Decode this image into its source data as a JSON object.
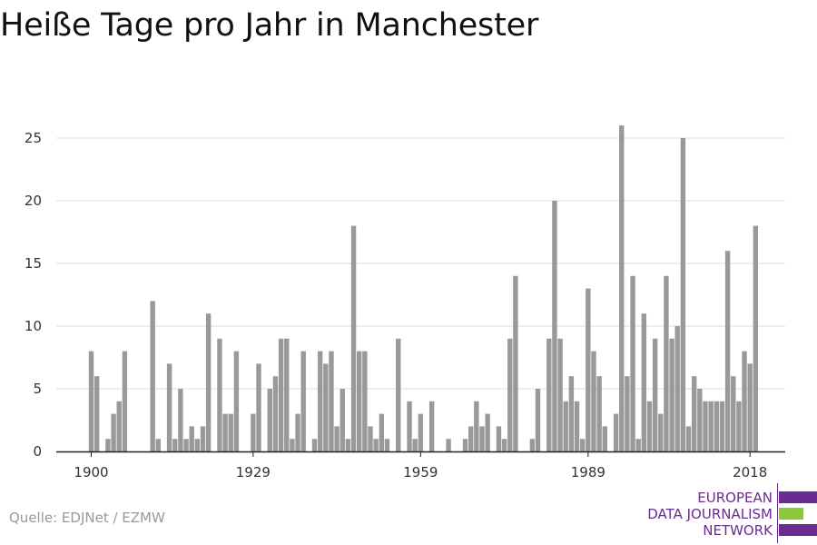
{
  "title": "Heiße Tage pro Jahr in Manchester",
  "source": "Quelle: EDJNet / EZMW",
  "logo": {
    "lines": [
      "EUROPEAN",
      "DATA JOURNALISM",
      "NETWORK"
    ],
    "colors": {
      "purple": "#6b2c91",
      "green": "#8cc63f"
    }
  },
  "colors": {
    "bar": "#999999",
    "grid": "#dddddd",
    "axis": "#222222",
    "text": "#333333"
  },
  "chart_data": {
    "type": "bar",
    "title": "Heiße Tage pro Jahr in Manchester",
    "xlabel": "",
    "ylabel": "",
    "x_start": 1900,
    "x_end": 2018,
    "x_tick_labels": [
      "1900",
      "1929",
      "1959",
      "1989",
      "2018"
    ],
    "y_ticks": [
      0,
      5,
      10,
      15,
      20,
      25
    ],
    "ylim": [
      0,
      26
    ],
    "grid": true,
    "series": [
      {
        "values": [
          8,
          6,
          0,
          1,
          3,
          4,
          8,
          0,
          0,
          0,
          0,
          12,
          1,
          0,
          7,
          1,
          5,
          1,
          2,
          1,
          2,
          11,
          0,
          9,
          3,
          3,
          8,
          0,
          0,
          3,
          7,
          0,
          5,
          6,
          9,
          9,
          1,
          3,
          8,
          0,
          1,
          8,
          7,
          8,
          2,
          5,
          1,
          18,
          8,
          8,
          2,
          1,
          3,
          1,
          0,
          9,
          0,
          4,
          1,
          3,
          0,
          4,
          0,
          0,
          1,
          0,
          0,
          1,
          2,
          4,
          2,
          3,
          0,
          2,
          1,
          9,
          14,
          0,
          0,
          1,
          5,
          0,
          9,
          20,
          9,
          4,
          6,
          4,
          1,
          13,
          8,
          6,
          2,
          0,
          3,
          26,
          6,
          14,
          1,
          11,
          4,
          9,
          3,
          14,
          9,
          10,
          25,
          2,
          6,
          5,
          4,
          4,
          4,
          4,
          16,
          6,
          4,
          8,
          7,
          18
        ]
      }
    ]
  }
}
